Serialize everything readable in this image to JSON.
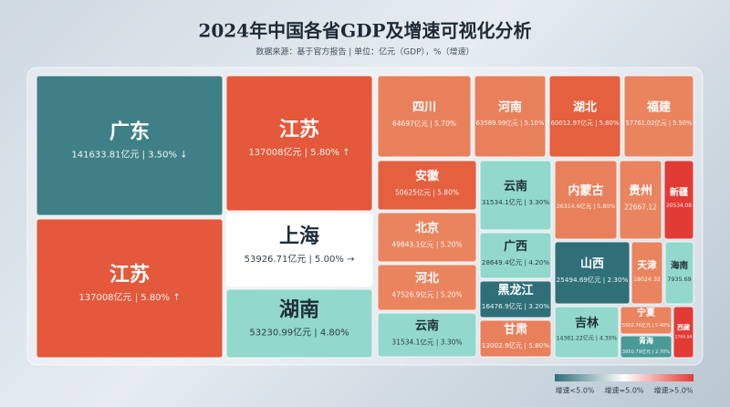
{
  "chart_data": {
    "type": "treemap",
    "title": "2024年中国各省GDP及增速可视化分析",
    "subtitle": "数据来源：基于官方报告 | 单位：亿元（GDP），%（增速）",
    "categories": [
      "广东",
      "江苏",
      "江苏",
      "上海",
      "湖南",
      "四川",
      "河南",
      "湖北",
      "福建",
      "安徽",
      "北京",
      "河北",
      "云南",
      "云南",
      "广西",
      "黑龙江",
      "甘肃",
      "内蒙古",
      "贵州",
      "新疆",
      "山西",
      "天津",
      "海南",
      "吉林",
      "宁夏",
      "青海",
      "西藏"
    ],
    "values": [
      141633.81,
      137008,
      137008,
      53926.71,
      53230.99,
      64697,
      63589.99,
      60012.97,
      57761.02,
      50625,
      49843.1,
      47526.9,
      31534.1,
      31534.1,
      28649.4,
      16476.9,
      13002.9,
      26314.6,
      22667.12,
      20534.08,
      25494.69,
      18024.32,
      7935.69,
      14361.22,
      5502.76,
      3950.79,
      2764.94
    ],
    "value_labels": [
      "141633.81亿元 | 3.50% ↓",
      "137008亿元 | 5.80% ↑",
      "137008亿元 | 5.80% ↑",
      "53926.71亿元 | 5.00% →",
      "53230.99亿元 | 4.80%",
      "64697亿元 | 5.70%",
      "63589.99亿元 | 5.10%",
      "60012.97亿元 | 5.80%",
      "57761.02亿元 | 5.50%",
      "50625亿元 | 5.80%",
      "49843.1亿元 | 5.20%",
      "47526.9亿元 | 5.20%",
      "31534.1亿元 | 3.30%",
      "31534.1亿元 | 3.30%",
      "28649.4亿元 | 4.20%",
      "16476.9亿元 | 3.20%",
      "13002.9亿元 | 5.80%",
      "26314.6亿元 | 5.80%",
      "22667.12",
      "20534.08",
      "25494.69亿元 | 2.30%",
      "18024.32",
      "7935.69",
      "14361.22亿元 | 4.30%",
      "5502.76亿元 | 5.40%",
      "3950.79亿元 | 2.70%",
      "2764.94"
    ],
    "colors": [
      "#3f8086",
      "#e4583b",
      "#e4583b",
      "#ffffff",
      "#93d8cc",
      "#e9805c",
      "#e9805c",
      "#e4603f",
      "#e9845f",
      "#e4603f",
      "#e9845f",
      "#e9845f",
      "#93d8cc",
      "#93d8cc",
      "#93d8cc",
      "#2f6f78",
      "#e9805c",
      "#e9805c",
      "#e9845f",
      "#e23b35",
      "#2f6f78",
      "#e9845f",
      "#93d8cc",
      "#93d8cc",
      "#e9845f",
      "#4a9a98",
      "#e23b35"
    ],
    "legend": {
      "labels": [
        "增速<5.0%",
        "增速=5.0%",
        "增速>5.0%"
      ],
      "colors": [
        "#2f6f78",
        "#ffffff",
        "#e23b35"
      ]
    }
  }
}
